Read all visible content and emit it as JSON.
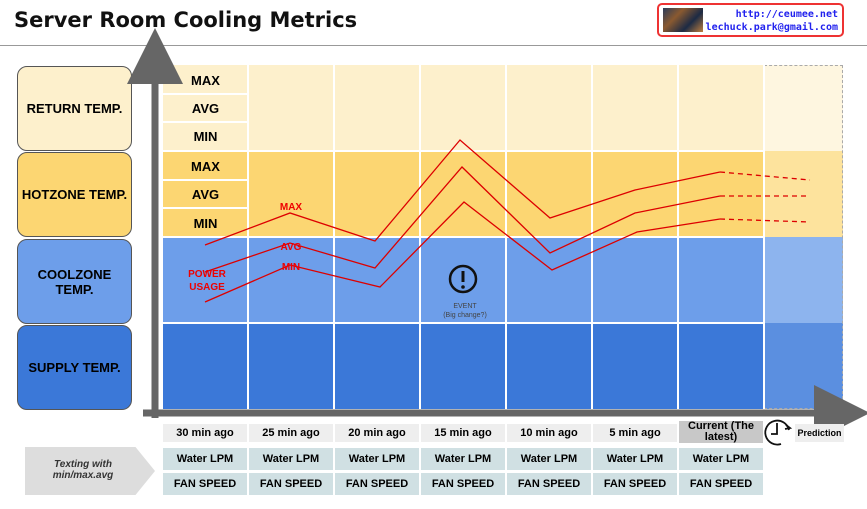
{
  "title": "Server Room Cooling Metrics",
  "contact": {
    "url": "http://ceumee.net",
    "email": "lechuck.park@gmail.com"
  },
  "zones": [
    {
      "label": "RETURN TEMP.",
      "color": "#fdf0cc"
    },
    {
      "label": "HOTZONE TEMP.",
      "color": "#fcd672"
    },
    {
      "label": "COOLZONE TEMP.",
      "color": "#6d9eea"
    },
    {
      "label": "SUPPLY TEMP.",
      "color": "#3b78d8"
    }
  ],
  "sub_labels": {
    "max": "MAX",
    "avg": "AVG",
    "min": "MIN"
  },
  "series_labels": {
    "max": "MAX",
    "avg": "AVG",
    "min": "MIN",
    "power": "POWER USAGE"
  },
  "event": {
    "title": "EVENT",
    "note": "(Big change?)"
  },
  "times": [
    "30 min ago",
    "25 min ago",
    "20 min ago",
    "15 min ago",
    "10 min ago",
    "5 min ago",
    "Current (The latest)"
  ],
  "prediction": "Prediction",
  "water": "Water LPM",
  "fan": "FAN SPEED",
  "texting": "Texting with min/max.avg"
}
